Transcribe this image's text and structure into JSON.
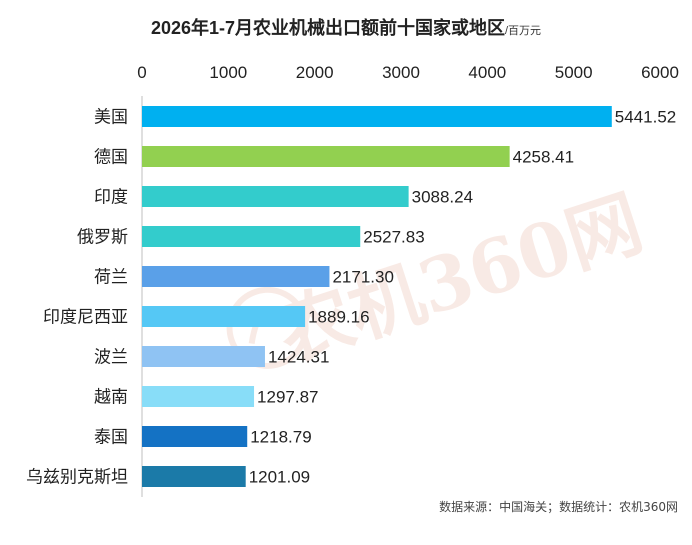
{
  "title": "2026年1-7月农业机械出口额前十国家或地区",
  "unit": "/百万元",
  "source": "数据来源：中国海关；数据统计：农机360网",
  "watermark": "农机360网",
  "chart_data": {
    "type": "bar",
    "orientation": "horizontal",
    "title": "2026年1-7月农业机械出口额前十国家或地区",
    "unit": "百万元",
    "xlim": [
      0,
      6000
    ],
    "xticks": [
      0,
      1000,
      2000,
      3000,
      4000,
      5000,
      6000
    ],
    "axis_position": "top",
    "grid": false,
    "categories": [
      "美国",
      "德国",
      "印度",
      "俄罗斯",
      "荷兰",
      "印度尼西亚",
      "波兰",
      "越南",
      "泰国",
      "乌兹别克斯坦"
    ],
    "values": [
      5441.52,
      4258.41,
      3088.24,
      2527.83,
      2171.3,
      1889.16,
      1424.31,
      1297.87,
      1218.79,
      1201.09
    ],
    "value_labels": [
      "5441.52",
      "4258.41",
      "3088.24",
      "2527.83",
      "2171.30",
      "1889.16",
      "1424.31",
      "1297.87",
      "1218.79",
      "1201.09"
    ],
    "colors": [
      "#00b0f0",
      "#92d050",
      "#33cccc",
      "#33cccc",
      "#5aa0e8",
      "#55c8f5",
      "#8fc3f3",
      "#88ddf8",
      "#1472c4",
      "#1b7aa8"
    ]
  }
}
